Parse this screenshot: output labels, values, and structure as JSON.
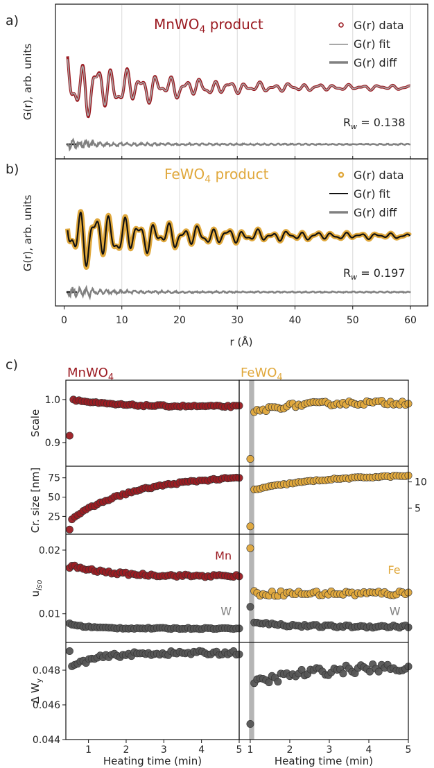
{
  "chart_data": [
    {
      "type": "line",
      "panel_label": "a)",
      "title": "MnWO4 product",
      "title_parts": {
        "base": "MnWO",
        "sub": "4",
        "rest": " product"
      },
      "ylabel": "G(r), arb. units",
      "xlim": [
        -1.5,
        63
      ],
      "x_ticks": [
        0,
        10,
        20,
        30,
        40,
        50,
        60
      ],
      "legend": [
        "G(r) data",
        "G(r) fit",
        "G(r) diff"
      ],
      "rw_label": {
        "base": "R",
        "sub": "w",
        "rest": " = 0.138"
      },
      "series": [
        {
          "role": "data",
          "color": "#9b1b22",
          "envelope_peak": [
            2.2,
            13
          ]
        },
        {
          "role": "fit",
          "color": "#a8a8a8"
        },
        {
          "role": "diff",
          "color": "#808080"
        }
      ]
    },
    {
      "type": "line",
      "panel_label": "b)",
      "title": "FeWO4 product",
      "title_parts": {
        "base": "FeWO",
        "sub": "4",
        "rest": " product"
      },
      "ylabel": "G(r), arb. units",
      "xlabel": "r (Å)",
      "xlim": [
        -1.5,
        63
      ],
      "x_ticks": [
        0,
        10,
        20,
        30,
        40,
        50,
        60
      ],
      "legend": [
        "G(r) data",
        "G(r) fit",
        "G(r) diff"
      ],
      "rw_label": {
        "base": "R",
        "sub": "w",
        "rest": " = 0.197"
      },
      "series": [
        {
          "role": "data",
          "color": "#e0a83c"
        },
        {
          "role": "fit",
          "color": "#111111"
        },
        {
          "role": "diff",
          "color": "#808080"
        }
      ]
    },
    {
      "type": "scatter",
      "panel_label": "c)",
      "column_titles": [
        {
          "base": "MnWO",
          "sub": "4",
          "color": "#9b1b22"
        },
        {
          "base": "FeWO",
          "sub": "4",
          "color": "#e0a83c"
        }
      ],
      "xlabel": "Heating time (min)",
      "x_ticks": [
        1,
        2,
        3,
        4,
        5
      ],
      "xlim_left": [
        0.4,
        5.0
      ],
      "xlim_right": [
        0.72,
        5.0
      ],
      "shade_span_right": [
        0.97,
        1.1
      ],
      "rows": [
        {
          "ylabel": "Scale",
          "ylim": [
            0.845,
            1.045
          ],
          "y_ticks": [
            0.9,
            1.0
          ],
          "y_tick_labels": [
            "0.9",
            "1.0"
          ],
          "left": [
            {
              "color": "#9b1b22",
              "first": [
                0.5,
                0.916
              ],
              "start": 0.6,
              "end": 5.0,
              "y0": 1.0,
              "y1": 0.984,
              "decay": 0.9,
              "noise": 0.002
            }
          ],
          "right": [
            {
              "color": "#e0a83c",
              "first": [
                1.0,
                0.862
              ],
              "start": 1.1,
              "end": 5.0,
              "y0": 0.97,
              "y1": 0.993,
              "decay": 0.8,
              "noise": 0.005
            }
          ]
        },
        {
          "ylabel": "Cr. size [nm]",
          "ylim": [
            2,
            90
          ],
          "y_ticks": [
            25,
            50,
            75
          ],
          "y_tick_labels": [
            "25",
            "50",
            "75"
          ],
          "right_axis": {
            "ylim": [
              0,
              13
            ],
            "y_ticks": [
              5,
              10
            ],
            "y_tick_labels": [
              "5",
              "10"
            ]
          },
          "left": [
            {
              "color": "#9b1b22",
              "first": [
                0.5,
                8
              ],
              "start": 0.56,
              "end": 5.0,
              "y0": 22,
              "y1": 79,
              "decay": 1.7,
              "noise": 1.2
            }
          ],
          "right": [
            {
              "color": "#e0a83c",
              "first": [
                1.0,
                1.5
              ],
              "start": 1.1,
              "end": 5.0,
              "y0": 8.5,
              "y1": 11.5,
              "decay": 1.8,
              "noise": 0.12
            }
          ]
        },
        {
          "ylabel": "uiso",
          "ylabel_parts": {
            "base": "u",
            "sub": "iso"
          },
          "ylim": [
            0.0055,
            0.0225
          ],
          "y_ticks": [
            0.01,
            0.02
          ],
          "y_tick_labels": [
            "0.01",
            "0.02"
          ],
          "labels": [
            {
              "text": "Mn",
              "side": "left",
              "x": 4.8,
              "y": 0.0185,
              "color": "#9b1b22"
            },
            {
              "text": "W",
              "side": "left",
              "x": 4.8,
              "y": 0.0098,
              "color": "#808080"
            },
            {
              "text": "Fe",
              "side": "right",
              "x": 4.8,
              "y": 0.0163,
              "color": "#e0a83c"
            },
            {
              "text": "W",
              "side": "right",
              "x": 4.8,
              "y": 0.0098,
              "color": "#808080"
            }
          ],
          "left": [
            {
              "color": "#9b1b22",
              "first": [
                0.5,
                0.0172
              ],
              "start": 0.56,
              "end": 5.0,
              "y0": 0.0175,
              "y1": 0.0159,
              "decay": 1.0,
              "noise": 0.0002
            },
            {
              "color": "#555555",
              "first": [
                0.5,
                0.0085
              ],
              "start": 0.56,
              "end": 5.0,
              "y0": 0.0083,
              "y1": 0.0077,
              "decay": 0.5,
              "noise": 0.0001
            }
          ],
          "right": [
            {
              "color": "#e0a83c",
              "first": [
                1.0,
                0.0203
              ],
              "start": 1.1,
              "end": 5.0,
              "y0": 0.0132,
              "y1": 0.0132,
              "decay": 1.0,
              "noise": 0.0004
            },
            {
              "color": "#555555",
              "first": [
                1.0,
                0.0111
              ],
              "start": 1.1,
              "end": 5.0,
              "y0": 0.0088,
              "y1": 0.008,
              "decay": 0.6,
              "noise": 0.0002
            }
          ]
        },
        {
          "ylabel": "Δ Wy",
          "ylabel_parts": {
            "base": "Δ W",
            "sub": "y"
          },
          "ylim": [
            0.044,
            0.0496
          ],
          "y_ticks": [
            0.044,
            0.046,
            0.048
          ],
          "y_tick_labels": [
            "0.044",
            "0.046",
            "0.048"
          ],
          "left": [
            {
              "color": "#555555",
              "first": [
                0.5,
                0.0491
              ],
              "start": 0.56,
              "end": 5.0,
              "y0": 0.0482,
              "y1": 0.049,
              "decay": 0.7,
              "noise": 0.00012
            }
          ],
          "right": [
            {
              "color": "#555555",
              "first": [
                1.0,
                0.0449
              ],
              "start": 1.1,
              "end": 5.0,
              "y0": 0.0472,
              "y1": 0.0482,
              "decay": 1.3,
              "noise": 0.00025
            }
          ]
        }
      ]
    }
  ]
}
